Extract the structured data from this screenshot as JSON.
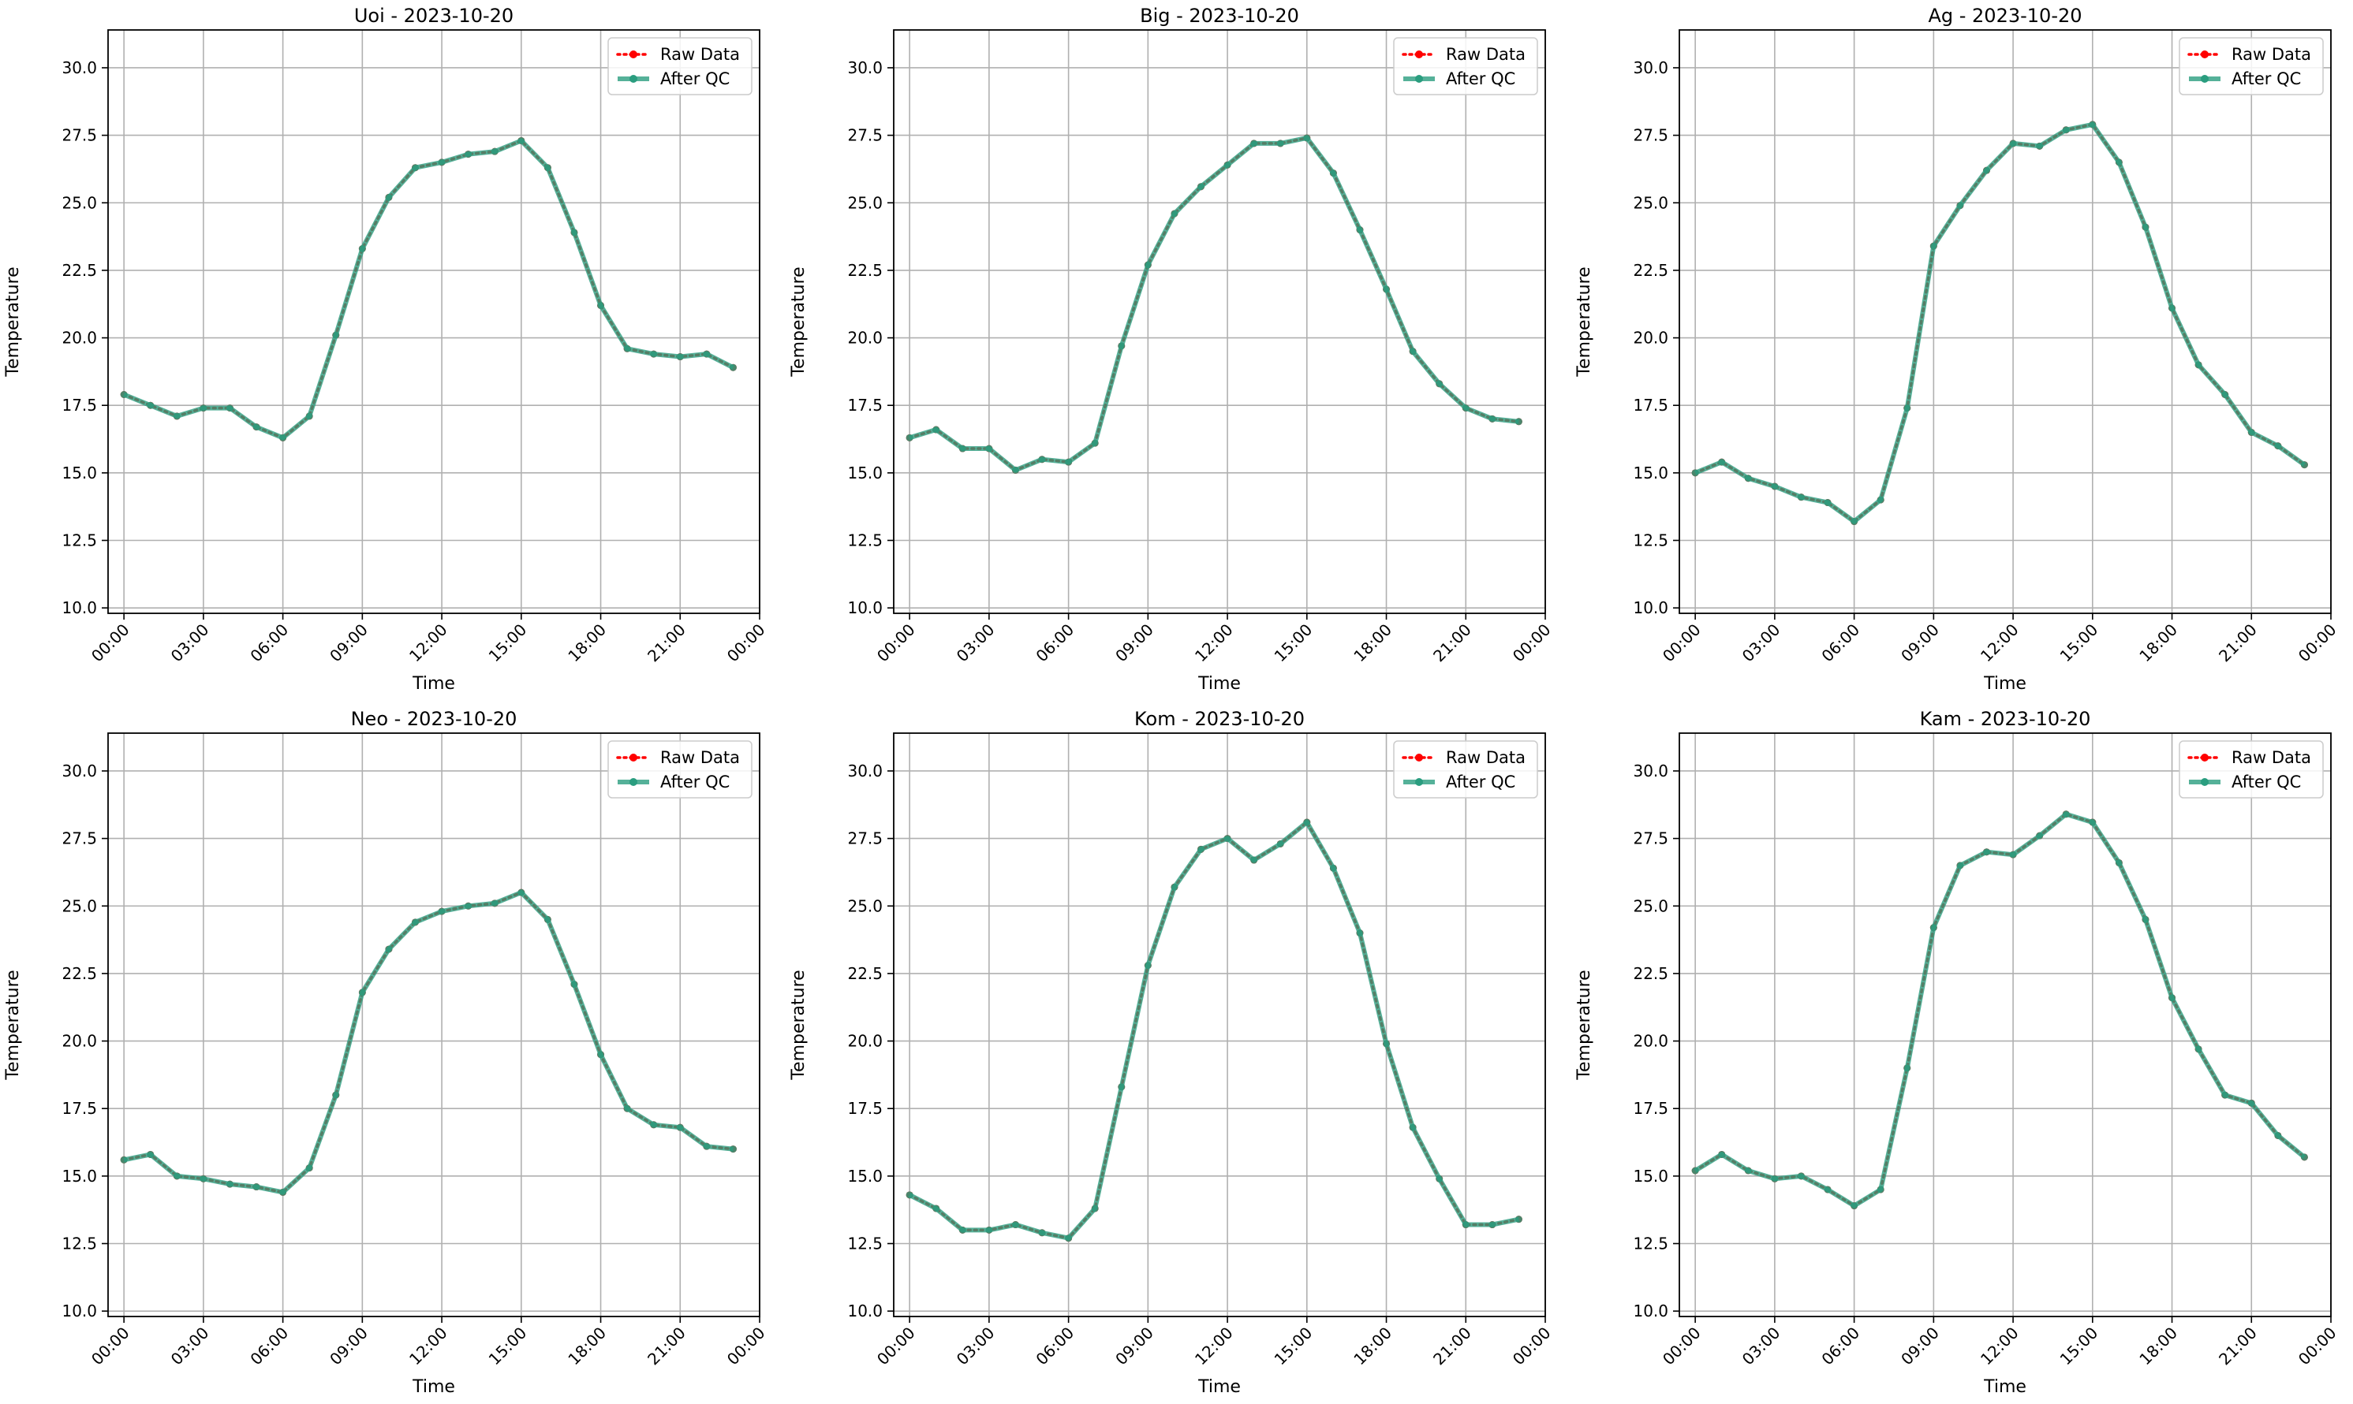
{
  "colors": {
    "raw": "#ff0000",
    "qc": "#2a9d7f",
    "grid": "#b0b0b0",
    "axis": "#000000",
    "legend_border": "#cccccc"
  },
  "chart_data": [
    {
      "type": "line",
      "title": "Uoi - 2023-10-20",
      "xlabel": "Time",
      "ylabel": "Temperature",
      "x_unit": "hour",
      "xlim": [
        -0.6,
        24.0
      ],
      "ylim": [
        9.8,
        31.4
      ],
      "xticks": [
        0,
        3,
        6,
        9,
        12,
        15,
        18,
        21,
        24
      ],
      "xtick_labels": [
        "00:00",
        "03:00",
        "06:00",
        "09:00",
        "12:00",
        "15:00",
        "18:00",
        "21:00",
        "00:00"
      ],
      "yticks": [
        10.0,
        12.5,
        15.0,
        17.5,
        20.0,
        22.5,
        25.0,
        27.5,
        30.0
      ],
      "ytick_labels": [
        "10.0",
        "12.5",
        "15.0",
        "17.5",
        "20.0",
        "22.5",
        "25.0",
        "27.5",
        "30.0"
      ],
      "grid": true,
      "legend_position": "top-right",
      "x": [
        0,
        1,
        2,
        3,
        4,
        5,
        6,
        7,
        8,
        9,
        10,
        11,
        12,
        13,
        14,
        15,
        16,
        17,
        18,
        19,
        20,
        21,
        22,
        23
      ],
      "series": [
        {
          "name": "Raw Data",
          "style": "dotted",
          "marker": "circle",
          "values": [
            17.9,
            17.5,
            17.1,
            17.4,
            17.4,
            16.7,
            16.3,
            17.1,
            20.1,
            23.3,
            25.2,
            26.3,
            26.5,
            26.8,
            26.9,
            27.3,
            26.3,
            23.9,
            21.2,
            19.6,
            19.4,
            19.3,
            19.4,
            18.9
          ]
        },
        {
          "name": "After QC",
          "style": "solid",
          "marker": "circle",
          "values": [
            17.9,
            17.5,
            17.1,
            17.4,
            17.4,
            16.7,
            16.3,
            17.1,
            20.1,
            23.3,
            25.2,
            26.3,
            26.5,
            26.8,
            26.9,
            27.3,
            26.3,
            23.9,
            21.2,
            19.6,
            19.4,
            19.3,
            19.4,
            18.9
          ]
        }
      ]
    },
    {
      "type": "line",
      "title": "Big - 2023-10-20",
      "xlabel": "Time",
      "ylabel": "Temperature",
      "x_unit": "hour",
      "xlim": [
        -0.6,
        24.0
      ],
      "ylim": [
        9.8,
        31.4
      ],
      "xticks": [
        0,
        3,
        6,
        9,
        12,
        15,
        18,
        21,
        24
      ],
      "xtick_labels": [
        "00:00",
        "03:00",
        "06:00",
        "09:00",
        "12:00",
        "15:00",
        "18:00",
        "21:00",
        "00:00"
      ],
      "yticks": [
        10.0,
        12.5,
        15.0,
        17.5,
        20.0,
        22.5,
        25.0,
        27.5,
        30.0
      ],
      "ytick_labels": [
        "10.0",
        "12.5",
        "15.0",
        "17.5",
        "20.0",
        "22.5",
        "25.0",
        "27.5",
        "30.0"
      ],
      "grid": true,
      "legend_position": "top-right",
      "x": [
        0,
        1,
        2,
        3,
        4,
        5,
        6,
        7,
        8,
        9,
        10,
        11,
        12,
        13,
        14,
        15,
        16,
        17,
        18,
        19,
        20,
        21,
        22,
        23
      ],
      "series": [
        {
          "name": "Raw Data",
          "style": "dotted",
          "marker": "circle",
          "values": [
            16.3,
            16.6,
            15.9,
            15.9,
            15.1,
            15.5,
            15.4,
            16.1,
            19.7,
            22.7,
            24.6,
            25.6,
            26.4,
            27.2,
            27.2,
            27.4,
            26.1,
            24.0,
            21.8,
            19.5,
            18.3,
            17.4,
            17.0,
            16.9
          ]
        },
        {
          "name": "After QC",
          "style": "solid",
          "marker": "circle",
          "values": [
            16.3,
            16.6,
            15.9,
            15.9,
            15.1,
            15.5,
            15.4,
            16.1,
            19.7,
            22.7,
            24.6,
            25.6,
            26.4,
            27.2,
            27.2,
            27.4,
            26.1,
            24.0,
            21.8,
            19.5,
            18.3,
            17.4,
            17.0,
            16.9
          ]
        }
      ]
    },
    {
      "type": "line",
      "title": "Ag - 2023-10-20",
      "xlabel": "Time",
      "ylabel": "Temperature",
      "x_unit": "hour",
      "xlim": [
        -0.6,
        24.0
      ],
      "ylim": [
        9.8,
        31.4
      ],
      "xticks": [
        0,
        3,
        6,
        9,
        12,
        15,
        18,
        21,
        24
      ],
      "xtick_labels": [
        "00:00",
        "03:00",
        "06:00",
        "09:00",
        "12:00",
        "15:00",
        "18:00",
        "21:00",
        "00:00"
      ],
      "yticks": [
        10.0,
        12.5,
        15.0,
        17.5,
        20.0,
        22.5,
        25.0,
        27.5,
        30.0
      ],
      "ytick_labels": [
        "10.0",
        "12.5",
        "15.0",
        "17.5",
        "20.0",
        "22.5",
        "25.0",
        "27.5",
        "30.0"
      ],
      "grid": true,
      "legend_position": "top-right",
      "x": [
        0,
        1,
        2,
        3,
        4,
        5,
        6,
        7,
        8,
        9,
        10,
        11,
        12,
        13,
        14,
        15,
        16,
        17,
        18,
        19,
        20,
        21,
        22,
        23
      ],
      "series": [
        {
          "name": "Raw Data",
          "style": "dotted",
          "marker": "circle",
          "values": [
            15.0,
            15.4,
            14.8,
            14.5,
            14.1,
            13.9,
            13.2,
            14.0,
            17.4,
            23.4,
            24.9,
            26.2,
            27.2,
            27.1,
            27.7,
            27.9,
            26.5,
            24.1,
            21.1,
            19.0,
            17.9,
            16.5,
            16.0,
            15.3
          ]
        },
        {
          "name": "After QC",
          "style": "solid",
          "marker": "circle",
          "values": [
            15.0,
            15.4,
            14.8,
            14.5,
            14.1,
            13.9,
            13.2,
            14.0,
            17.4,
            23.4,
            24.9,
            26.2,
            27.2,
            27.1,
            27.7,
            27.9,
            26.5,
            24.1,
            21.1,
            19.0,
            17.9,
            16.5,
            16.0,
            15.3
          ]
        }
      ]
    },
    {
      "type": "line",
      "title": "Neo - 2023-10-20",
      "xlabel": "Time",
      "ylabel": "Temperature",
      "x_unit": "hour",
      "xlim": [
        -0.6,
        24.0
      ],
      "ylim": [
        9.8,
        31.4
      ],
      "xticks": [
        0,
        3,
        6,
        9,
        12,
        15,
        18,
        21,
        24
      ],
      "xtick_labels": [
        "00:00",
        "03:00",
        "06:00",
        "09:00",
        "12:00",
        "15:00",
        "18:00",
        "21:00",
        "00:00"
      ],
      "yticks": [
        10.0,
        12.5,
        15.0,
        17.5,
        20.0,
        22.5,
        25.0,
        27.5,
        30.0
      ],
      "ytick_labels": [
        "10.0",
        "12.5",
        "15.0",
        "17.5",
        "20.0",
        "22.5",
        "25.0",
        "27.5",
        "30.0"
      ],
      "grid": true,
      "legend_position": "top-right",
      "x": [
        0,
        1,
        2,
        3,
        4,
        5,
        6,
        7,
        8,
        9,
        10,
        11,
        12,
        13,
        14,
        15,
        16,
        17,
        18,
        19,
        20,
        21,
        22,
        23
      ],
      "series": [
        {
          "name": "Raw Data",
          "style": "dotted",
          "marker": "circle",
          "values": [
            15.6,
            15.8,
            15.0,
            14.9,
            14.7,
            14.6,
            14.4,
            15.3,
            18.0,
            21.8,
            23.4,
            24.4,
            24.8,
            25.0,
            25.1,
            25.5,
            24.5,
            22.1,
            19.5,
            17.5,
            16.9,
            16.8,
            16.1,
            16.0
          ]
        },
        {
          "name": "After QC",
          "style": "solid",
          "marker": "circle",
          "values": [
            15.6,
            15.8,
            15.0,
            14.9,
            14.7,
            14.6,
            14.4,
            15.3,
            18.0,
            21.8,
            23.4,
            24.4,
            24.8,
            25.0,
            25.1,
            25.5,
            24.5,
            22.1,
            19.5,
            17.5,
            16.9,
            16.8,
            16.1,
            16.0
          ]
        }
      ]
    },
    {
      "type": "line",
      "title": "Kom - 2023-10-20",
      "xlabel": "Time",
      "ylabel": "Temperature",
      "x_unit": "hour",
      "xlim": [
        -0.6,
        24.0
      ],
      "ylim": [
        9.8,
        31.4
      ],
      "xticks": [
        0,
        3,
        6,
        9,
        12,
        15,
        18,
        21,
        24
      ],
      "xtick_labels": [
        "00:00",
        "03:00",
        "06:00",
        "09:00",
        "12:00",
        "15:00",
        "18:00",
        "21:00",
        "00:00"
      ],
      "yticks": [
        10.0,
        12.5,
        15.0,
        17.5,
        20.0,
        22.5,
        25.0,
        27.5,
        30.0
      ],
      "ytick_labels": [
        "10.0",
        "12.5",
        "15.0",
        "17.5",
        "20.0",
        "22.5",
        "25.0",
        "27.5",
        "30.0"
      ],
      "grid": true,
      "legend_position": "top-right",
      "x": [
        0,
        1,
        2,
        3,
        4,
        5,
        6,
        7,
        8,
        9,
        10,
        11,
        12,
        13,
        14,
        15,
        16,
        17,
        18,
        19,
        20,
        21,
        22,
        23
      ],
      "series": [
        {
          "name": "Raw Data",
          "style": "dotted",
          "marker": "circle",
          "values": [
            14.3,
            13.8,
            13.0,
            13.0,
            13.2,
            12.9,
            12.7,
            13.8,
            18.3,
            22.8,
            25.7,
            27.1,
            27.5,
            26.7,
            27.3,
            28.1,
            26.4,
            24.0,
            19.9,
            16.8,
            14.9,
            13.2,
            13.2,
            13.4
          ]
        },
        {
          "name": "After QC",
          "style": "solid",
          "marker": "circle",
          "values": [
            14.3,
            13.8,
            13.0,
            13.0,
            13.2,
            12.9,
            12.7,
            13.8,
            18.3,
            22.8,
            25.7,
            27.1,
            27.5,
            26.7,
            27.3,
            28.1,
            26.4,
            24.0,
            19.9,
            16.8,
            14.9,
            13.2,
            13.2,
            13.4
          ]
        }
      ]
    },
    {
      "type": "line",
      "title": "Kam - 2023-10-20",
      "xlabel": "Time",
      "ylabel": "Temperature",
      "x_unit": "hour",
      "xlim": [
        -0.6,
        24.0
      ],
      "ylim": [
        9.8,
        31.4
      ],
      "xticks": [
        0,
        3,
        6,
        9,
        12,
        15,
        18,
        21,
        24
      ],
      "xtick_labels": [
        "00:00",
        "03:00",
        "06:00",
        "09:00",
        "12:00",
        "15:00",
        "18:00",
        "21:00",
        "00:00"
      ],
      "yticks": [
        10.0,
        12.5,
        15.0,
        17.5,
        20.0,
        22.5,
        25.0,
        27.5,
        30.0
      ],
      "ytick_labels": [
        "10.0",
        "12.5",
        "15.0",
        "17.5",
        "20.0",
        "22.5",
        "25.0",
        "27.5",
        "30.0"
      ],
      "grid": true,
      "legend_position": "top-right",
      "x": [
        0,
        1,
        2,
        3,
        4,
        5,
        6,
        7,
        8,
        9,
        10,
        11,
        12,
        13,
        14,
        15,
        16,
        17,
        18,
        19,
        20,
        21,
        22,
        23
      ],
      "series": [
        {
          "name": "Raw Data",
          "style": "dotted",
          "marker": "circle",
          "values": [
            15.2,
            15.8,
            15.2,
            14.9,
            15.0,
            14.5,
            13.9,
            14.5,
            19.0,
            24.2,
            26.5,
            27.0,
            26.9,
            27.6,
            28.4,
            28.1,
            26.6,
            24.5,
            21.6,
            19.7,
            18.0,
            17.7,
            16.5,
            15.7
          ]
        },
        {
          "name": "After QC",
          "style": "solid",
          "marker": "circle",
          "values": [
            15.2,
            15.8,
            15.2,
            14.9,
            15.0,
            14.5,
            13.9,
            14.5,
            19.0,
            24.2,
            26.5,
            27.0,
            26.9,
            27.6,
            28.4,
            28.1,
            26.6,
            24.5,
            21.6,
            19.7,
            18.0,
            17.7,
            16.5,
            15.7
          ]
        }
      ]
    }
  ]
}
